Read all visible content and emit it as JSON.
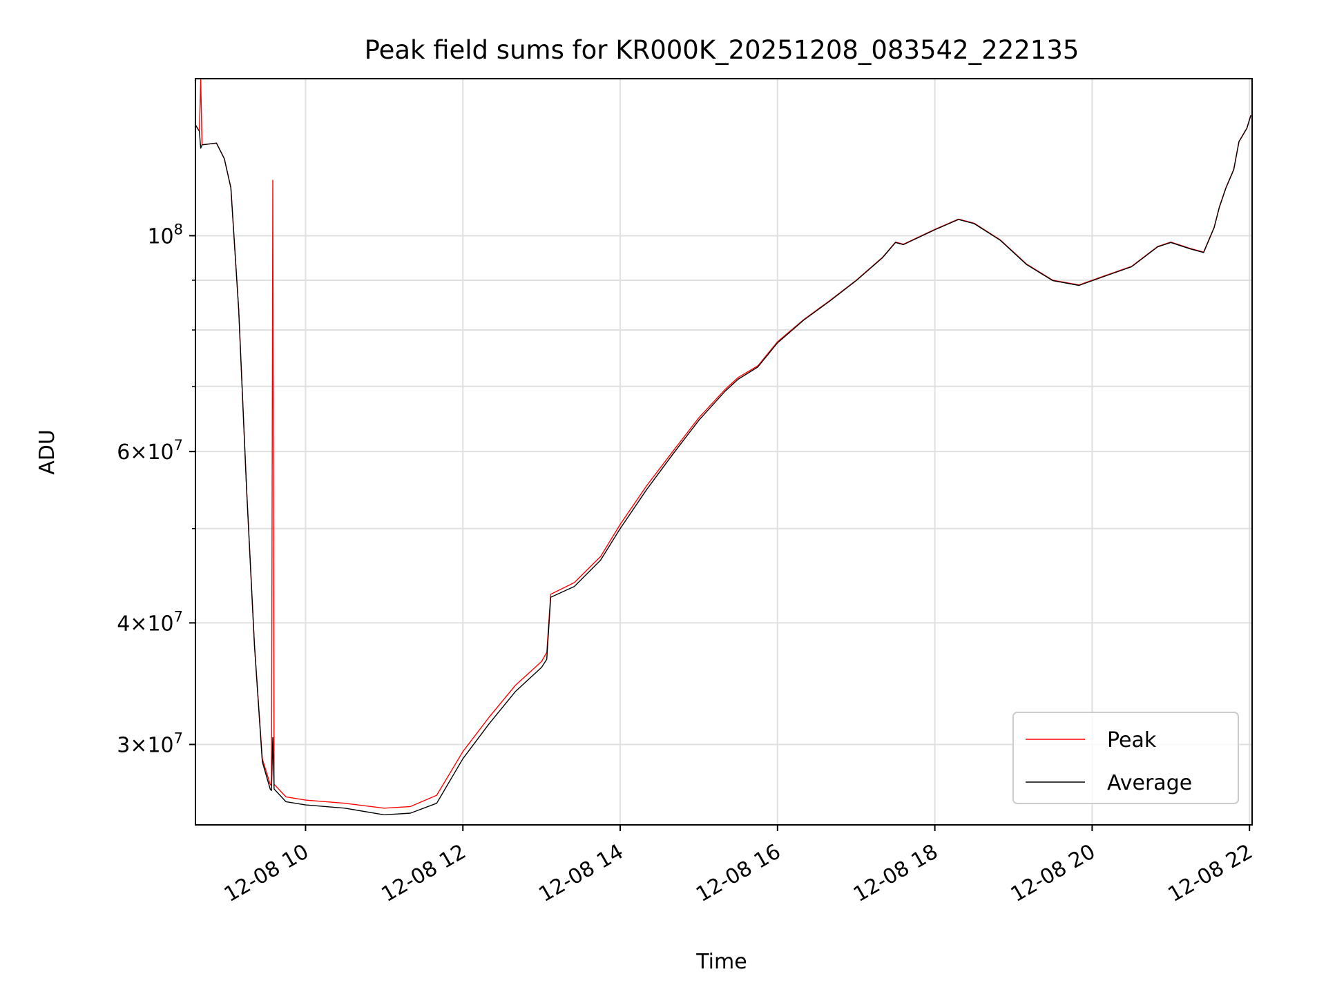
{
  "chart_data": {
    "type": "line",
    "title": "Peak field sums for KR000K_20251208_083542_222135",
    "xlabel": "Time",
    "ylabel": "ADU",
    "x_scale": "time",
    "y_scale": "log",
    "xlim": [
      "12-08 08:36",
      "12-08 22:02"
    ],
    "ylim": [
      24800000,
      145000000
    ],
    "x_ticks": [
      "12-08 10",
      "12-08 12",
      "12-08 14",
      "12-08 16",
      "12-08 18",
      "12-08 20",
      "12-08 22"
    ],
    "y_ticks": [
      {
        "value": 100000000,
        "base": "10",
        "exp": "8",
        "mantissa": ""
      },
      {
        "value": 60000000,
        "base": "10",
        "exp": "7",
        "mantissa": "6"
      },
      {
        "value": 40000000,
        "base": "10",
        "exp": "7",
        "mantissa": "4"
      },
      {
        "value": 30000000,
        "base": "10",
        "exp": "7",
        "mantissa": "3"
      }
    ],
    "y_minor_ticks": [
      50000000,
      70000000,
      80000000,
      90000000
    ],
    "grid": true,
    "legend_position": "lower right",
    "series": [
      {
        "name": "Peak",
        "color": "#ff0000",
        "points": [
          [
            "12-08 08:36",
            130000000
          ],
          [
            "12-08 08:39",
            128000000
          ],
          [
            "12-08 08:40",
            145000000
          ],
          [
            "12-08 08:41",
            124000000
          ],
          [
            "12-08 08:52",
            124500000
          ],
          [
            "12-08 08:58",
            120000000
          ],
          [
            "12-08 09:03",
            112000000
          ],
          [
            "12-08 09:09",
            84000000
          ],
          [
            "12-08 09:15",
            55000000
          ],
          [
            "12-08 09:21",
            38000000
          ],
          [
            "12-08 09:27",
            29000000
          ],
          [
            "12-08 09:33",
            27300000
          ],
          [
            "12-08 09:34",
            27200000
          ],
          [
            "12-08 09:35",
            114000000
          ],
          [
            "12-08 09:36",
            27300000
          ],
          [
            "12-08 09:45",
            26500000
          ],
          [
            "12-08 10:00",
            26300000
          ],
          [
            "12-08 10:30",
            26100000
          ],
          [
            "12-08 11:00",
            25800000
          ],
          [
            "12-08 11:20",
            25900000
          ],
          [
            "12-08 11:40",
            26600000
          ],
          [
            "12-08 12:00",
            29500000
          ],
          [
            "12-08 12:20",
            32000000
          ],
          [
            "12-08 12:40",
            34500000
          ],
          [
            "12-08 13:00",
            36500000
          ],
          [
            "12-08 13:04",
            37300000
          ],
          [
            "12-08 13:07",
            42800000
          ],
          [
            "12-08 13:25",
            44000000
          ],
          [
            "12-08 13:45",
            46800000
          ],
          [
            "12-08 14:00",
            50500000
          ],
          [
            "12-08 14:20",
            55300000
          ],
          [
            "12-08 14:40",
            60000000
          ],
          [
            "12-08 15:00",
            65000000
          ],
          [
            "12-08 15:20",
            69500000
          ],
          [
            "12-08 15:30",
            71500000
          ],
          [
            "12-08 15:45",
            73500000
          ],
          [
            "12-08 16:00",
            77800000
          ],
          [
            "12-08 16:20",
            82000000
          ],
          [
            "12-08 16:40",
            85800000
          ],
          [
            "12-08 17:00",
            90000000
          ],
          [
            "12-08 17:20",
            95000000
          ],
          [
            "12-08 17:30",
            98500000
          ],
          [
            "12-08 17:36",
            98000000
          ],
          [
            "12-08 18:00",
            101500000
          ],
          [
            "12-08 18:18",
            104000000
          ],
          [
            "12-08 18:30",
            103000000
          ],
          [
            "12-08 18:50",
            99000000
          ],
          [
            "12-08 19:10",
            93500000
          ],
          [
            "12-08 19:30",
            90000000
          ],
          [
            "12-08 19:50",
            89000000
          ],
          [
            "12-08 20:10",
            91000000
          ],
          [
            "12-08 20:30",
            93000000
          ],
          [
            "12-08 20:50",
            97500000
          ],
          [
            "12-08 21:00",
            98500000
          ],
          [
            "12-08 21:15",
            97000000
          ],
          [
            "12-08 21:25",
            96200000
          ],
          [
            "12-08 21:33",
            102000000
          ],
          [
            "12-08 21:37",
            107000000
          ],
          [
            "12-08 21:42",
            112000000
          ],
          [
            "12-08 21:48",
            117000000
          ],
          [
            "12-08 21:52",
            125000000
          ],
          [
            "12-08 21:58",
            129000000
          ],
          [
            "12-08 22:01",
            133000000
          ]
        ]
      },
      {
        "name": "Average",
        "color": "#000000",
        "points": [
          [
            "12-08 08:36",
            130000000
          ],
          [
            "12-08 08:39",
            128000000
          ],
          [
            "12-08 08:40",
            123000000
          ],
          [
            "12-08 08:41",
            124000000
          ],
          [
            "12-08 08:52",
            124500000
          ],
          [
            "12-08 08:58",
            120000000
          ],
          [
            "12-08 09:03",
            112000000
          ],
          [
            "12-08 09:09",
            84000000
          ],
          [
            "12-08 09:15",
            55000000
          ],
          [
            "12-08 09:21",
            38000000
          ],
          [
            "12-08 09:27",
            28800000
          ],
          [
            "12-08 09:33",
            27000000
          ],
          [
            "12-08 09:34",
            26900000
          ],
          [
            "12-08 09:35",
            30500000
          ],
          [
            "12-08 09:36",
            27000000
          ],
          [
            "12-08 09:45",
            26200000
          ],
          [
            "12-08 10:00",
            26000000
          ],
          [
            "12-08 10:30",
            25800000
          ],
          [
            "12-08 11:00",
            25400000
          ],
          [
            "12-08 11:20",
            25500000
          ],
          [
            "12-08 11:40",
            26100000
          ],
          [
            "12-08 12:00",
            29000000
          ],
          [
            "12-08 12:20",
            31500000
          ],
          [
            "12-08 12:40",
            34000000
          ],
          [
            "12-08 13:00",
            36000000
          ],
          [
            "12-08 13:04",
            36700000
          ],
          [
            "12-08 13:07",
            42500000
          ],
          [
            "12-08 13:25",
            43600000
          ],
          [
            "12-08 13:45",
            46400000
          ],
          [
            "12-08 14:00",
            50000000
          ],
          [
            "12-08 14:20",
            54800000
          ],
          [
            "12-08 14:40",
            59600000
          ],
          [
            "12-08 15:00",
            64600000
          ],
          [
            "12-08 15:20",
            69200000
          ],
          [
            "12-08 15:30",
            71200000
          ],
          [
            "12-08 15:45",
            73300000
          ],
          [
            "12-08 16:00",
            77600000
          ],
          [
            "12-08 16:20",
            81900000
          ],
          [
            "12-08 16:40",
            85700000
          ],
          [
            "12-08 17:00",
            89900000
          ],
          [
            "12-08 17:20",
            94900000
          ],
          [
            "12-08 17:30",
            98400000
          ],
          [
            "12-08 17:36",
            97900000
          ],
          [
            "12-08 18:00",
            101400000
          ],
          [
            "12-08 18:18",
            103900000
          ],
          [
            "12-08 18:30",
            102900000
          ],
          [
            "12-08 18:50",
            98900000
          ],
          [
            "12-08 19:10",
            93400000
          ],
          [
            "12-08 19:30",
            89900000
          ],
          [
            "12-08 19:50",
            88900000
          ],
          [
            "12-08 20:10",
            90900000
          ],
          [
            "12-08 20:30",
            92900000
          ],
          [
            "12-08 20:50",
            97400000
          ],
          [
            "12-08 21:00",
            98400000
          ],
          [
            "12-08 21:15",
            96900000
          ],
          [
            "12-08 21:25",
            96100000
          ],
          [
            "12-08 21:33",
            101900000
          ],
          [
            "12-08 21:37",
            106900000
          ],
          [
            "12-08 21:42",
            111900000
          ],
          [
            "12-08 21:48",
            116900000
          ],
          [
            "12-08 21:52",
            124900000
          ],
          [
            "12-08 21:58",
            128900000
          ],
          [
            "12-08 22:01",
            132900000
          ]
        ]
      }
    ]
  }
}
